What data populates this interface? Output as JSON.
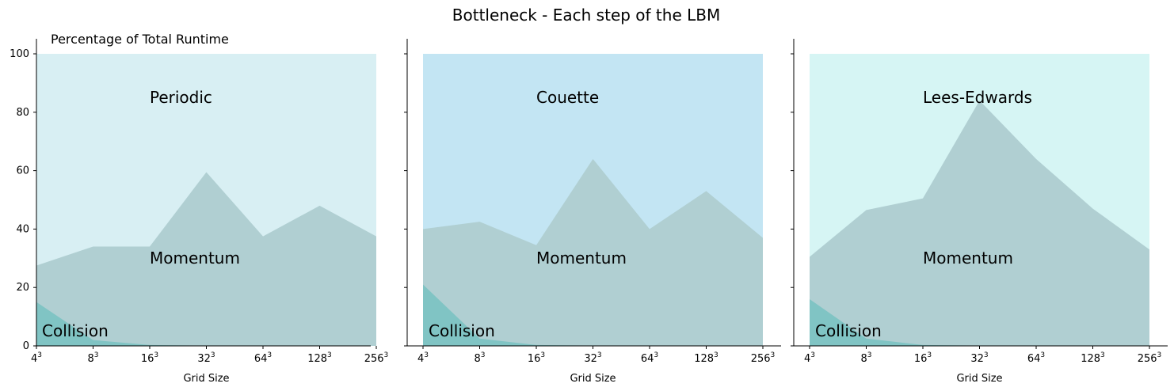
{
  "title": "Bottleneck - Each step of the LBM",
  "y_axis_title": "Percentage of Total Runtime",
  "colors": {
    "collision": "#80c4c4",
    "momentum": "#b0cfd2",
    "bg_periodic": "#d8eff3",
    "bg_couette": "#c3e5f3",
    "bg_lees_edwards": "#d6f5f4"
  },
  "chart_data": [
    {
      "type": "area",
      "name": "Periodic",
      "categories_base": [
        "4",
        "8",
        "16",
        "32",
        "64",
        "128",
        "256"
      ],
      "categories_exp": "3",
      "xlabel": "Grid Size",
      "ylim": [
        0,
        100
      ],
      "yticks": [
        0,
        20,
        40,
        60,
        80,
        100
      ],
      "series": [
        {
          "name": "Collision",
          "values": [
            15,
            2,
            0.3,
            0.1,
            0,
            0,
            0
          ]
        },
        {
          "name": "Momentum",
          "values": [
            27.5,
            34,
            34,
            59.5,
            37.5,
            48,
            37.5
          ]
        },
        {
          "name": "Periodic",
          "values": [
            100,
            100,
            100,
            100,
            100,
            100,
            100
          ]
        }
      ]
    },
    {
      "type": "area",
      "name": "Couette",
      "categories_base": [
        "4",
        "8",
        "16",
        "32",
        "64",
        "128",
        "256"
      ],
      "categories_exp": "3",
      "xlabel": "Grid Size",
      "ylim": [
        0,
        100
      ],
      "yticks": [
        0,
        20,
        40,
        60,
        80,
        100
      ],
      "series": [
        {
          "name": "Collision",
          "values": [
            21,
            2.5,
            0.3,
            0.1,
            0,
            0,
            0
          ]
        },
        {
          "name": "Momentum",
          "values": [
            40,
            42.5,
            34.5,
            64,
            40,
            53,
            37
          ]
        },
        {
          "name": "Couette",
          "values": [
            100,
            100,
            100,
            100,
            100,
            100,
            100
          ]
        }
      ]
    },
    {
      "type": "area",
      "name": "Lees-Edwards",
      "categories_base": [
        "4",
        "8",
        "16",
        "32",
        "64",
        "128",
        "256"
      ],
      "categories_exp": "3",
      "xlabel": "Grid Size",
      "ylim": [
        0,
        100
      ],
      "yticks": [
        0,
        20,
        40,
        60,
        80,
        100
      ],
      "series": [
        {
          "name": "Collision",
          "values": [
            16,
            2.5,
            0.3,
            0.1,
            0,
            0,
            0
          ]
        },
        {
          "name": "Momentum",
          "values": [
            30.5,
            46.5,
            50.5,
            84,
            64,
            47,
            33
          ]
        },
        {
          "name": "Lees-Edwards",
          "values": [
            100,
            100,
            100,
            100,
            100,
            100,
            100
          ]
        }
      ]
    }
  ]
}
